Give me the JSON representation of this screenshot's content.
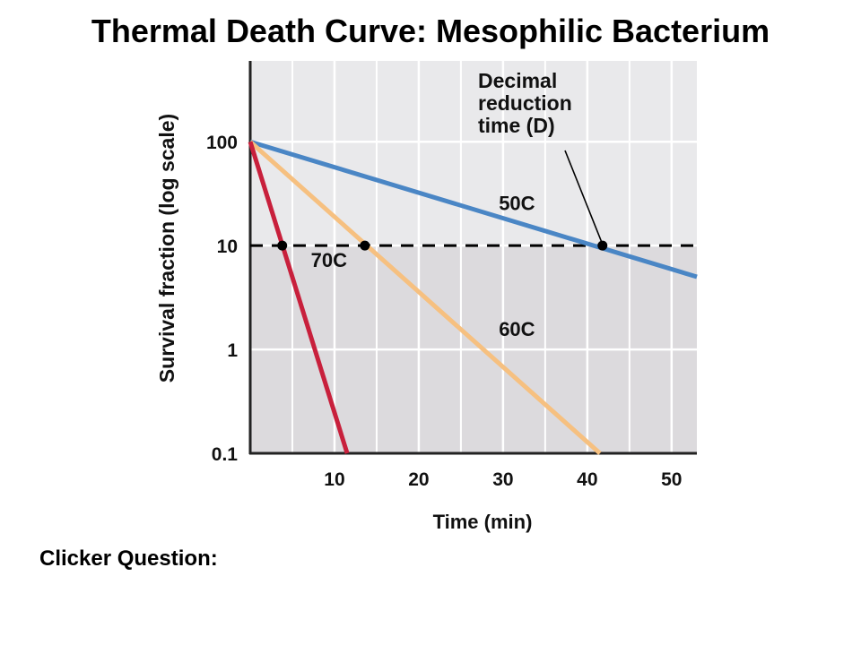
{
  "slide": {
    "title": "Thermal Death Curve: Mesophilic Bacterium",
    "footer_prompt": "Clicker Question:"
  },
  "chart_data": {
    "type": "line",
    "title": "",
    "xlabel": "Time (min)",
    "ylabel": "Survival fraction (log scale)",
    "y_scale": "log",
    "xlim": [
      0,
      53
    ],
    "ylim": [
      0.1,
      600
    ],
    "x_ticks": [
      10,
      20,
      30,
      40,
      50
    ],
    "x_tick_labels": [
      "10",
      "20",
      "30",
      "40",
      "50"
    ],
    "y_ticks": [
      0.1,
      1,
      10,
      100
    ],
    "y_tick_labels": [
      "0.1",
      "1",
      "10",
      "100"
    ],
    "grid": true,
    "series": [
      {
        "name": "50C",
        "color": "#4a86c5",
        "x": [
          0,
          53
        ],
        "y": [
          100,
          5
        ]
      },
      {
        "name": "60C",
        "color": "#f6c080",
        "x": [
          0,
          41.5
        ],
        "y": [
          100,
          0.1
        ]
      },
      {
        "name": "70C",
        "color": "#c8203c",
        "x": [
          0,
          11.5
        ],
        "y": [
          100,
          0.1
        ]
      }
    ],
    "reference_line": {
      "y": 10,
      "style": "dashed",
      "color": "#000000"
    },
    "markers": [
      {
        "series": "70C",
        "x": 3.8,
        "y": 10
      },
      {
        "series": "60C",
        "x": 13.6,
        "y": 10
      },
      {
        "series": "50C",
        "x": 41.8,
        "y": 10
      }
    ],
    "annotations": [
      {
        "id": "decimal-reduction",
        "text_lines": [
          "Decimal",
          "reduction",
          "time (D)"
        ],
        "points_to": {
          "x": 41.8,
          "y": 10
        }
      }
    ],
    "shading": {
      "lower_region_below_y": 10,
      "upper_color": "#e9e9eb",
      "lower_color": "#dcdadd"
    }
  }
}
